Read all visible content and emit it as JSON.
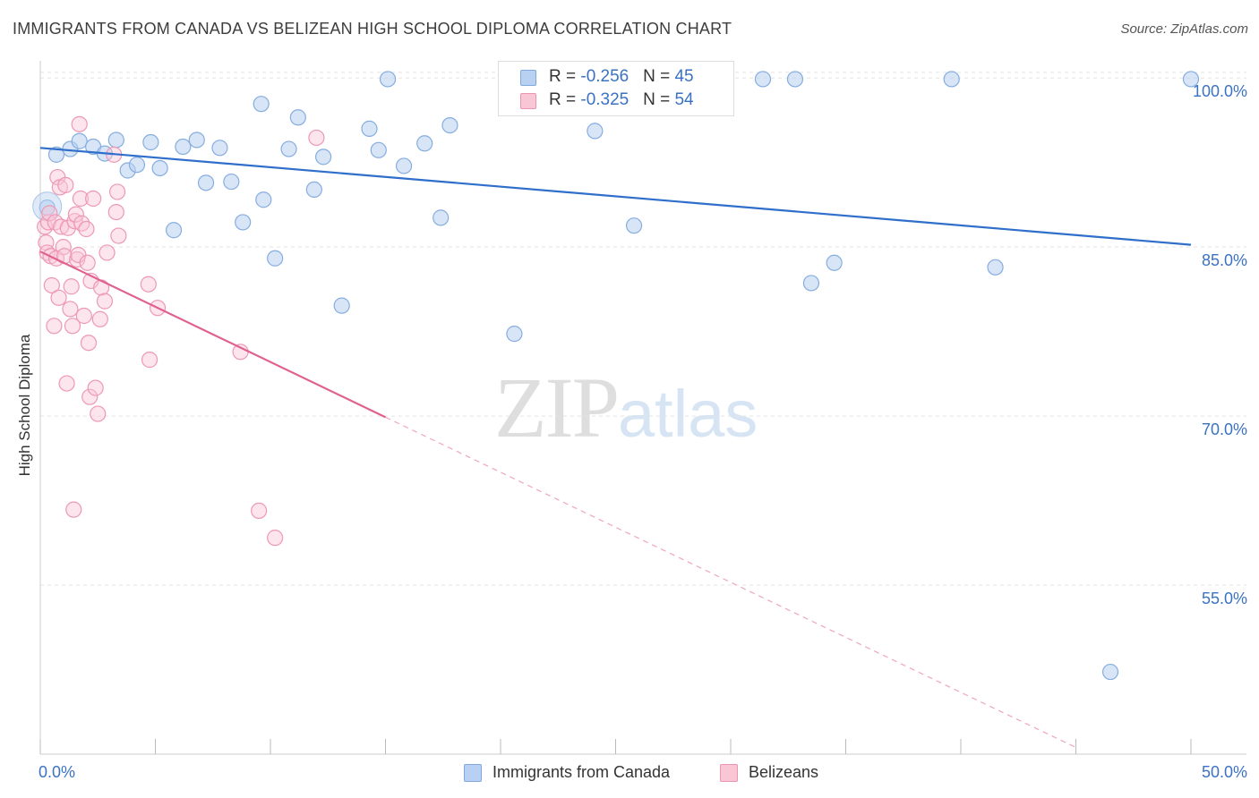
{
  "title": "IMMIGRANTS FROM CANADA VS BELIZEAN HIGH SCHOOL DIPLOMA CORRELATION CHART",
  "source": "Source: ZipAtlas.com",
  "watermark": {
    "zip": "ZIP",
    "atlas": "atlas"
  },
  "legend": {
    "r_label": "R = ",
    "n_label": "N = ",
    "rows": [
      {
        "r": "-0.256",
        "n": "45",
        "fill": "#b8d0f1",
        "stroke": "#7fa8dc"
      },
      {
        "r": "-0.325",
        "n": "54",
        "fill": "#f9c6d6",
        "stroke": "#ee93b0"
      }
    ]
  },
  "bottom_legend": [
    {
      "label": "Immigrants from Canada",
      "fill": "#b8d0f1",
      "stroke": "#7fa8dc"
    },
    {
      "label": "Belizeans",
      "fill": "#f9c6d6",
      "stroke": "#ee93b0"
    }
  ],
  "chart_data": {
    "type": "scatter",
    "title": "IMMIGRANTS FROM CANADA VS BELIZEAN HIGH SCHOOL DIPLOMA CORRELATION CHART",
    "xlabel": "",
    "ylabel": "High School Diploma",
    "xlim": [
      0,
      50
    ],
    "ylim": [
      40,
      102
    ],
    "x_tick_labels": [
      "0.0%",
      "50.0%"
    ],
    "y_ticks": [
      55,
      70,
      85,
      100
    ],
    "y_tick_labels": [
      "55.0%",
      "70.0%",
      "85.0%",
      "100.0%"
    ],
    "grid": true,
    "legend_position": "top-center",
    "colors": {
      "blue_line": "#2f6fcb",
      "pink_line": "#e0608f",
      "tick_label": "#3a72c4"
    },
    "series": [
      {
        "name": "Immigrants from Canada",
        "r": -0.256,
        "n": 45,
        "trend": {
          "x": [
            0,
            50
          ],
          "y": [
            93.8,
            85.2
          ]
        },
        "points": [
          [
            0.3,
            88.5
          ],
          [
            0.7,
            93.2
          ],
          [
            1.3,
            93.7
          ],
          [
            1.7,
            94.4
          ],
          [
            2.3,
            93.9
          ],
          [
            2.8,
            93.3
          ],
          [
            3.3,
            94.5
          ],
          [
            3.8,
            91.8
          ],
          [
            4.2,
            92.3
          ],
          [
            4.8,
            94.3
          ],
          [
            5.2,
            92.0
          ],
          [
            5.8,
            86.5
          ],
          [
            6.2,
            93.9
          ],
          [
            6.8,
            94.5
          ],
          [
            7.2,
            90.7
          ],
          [
            7.8,
            93.8
          ],
          [
            8.3,
            90.8
          ],
          [
            8.8,
            87.2
          ],
          [
            9.6,
            97.7
          ],
          [
            9.7,
            89.2
          ],
          [
            10.2,
            84.0
          ],
          [
            10.8,
            93.7
          ],
          [
            11.2,
            96.5
          ],
          [
            11.9,
            90.1
          ],
          [
            12.3,
            93.0
          ],
          [
            13.1,
            79.8
          ],
          [
            14.3,
            95.5
          ],
          [
            14.7,
            93.6
          ],
          [
            15.1,
            99.9
          ],
          [
            15.8,
            92.2
          ],
          [
            16.7,
            94.2
          ],
          [
            17.4,
            87.6
          ],
          [
            17.8,
            95.8
          ],
          [
            20.6,
            77.3
          ],
          [
            24.1,
            95.3
          ],
          [
            25.8,
            86.9
          ],
          [
            29.6,
            99.9
          ],
          [
            31.4,
            99.9
          ],
          [
            32.8,
            99.9
          ],
          [
            33.5,
            81.8
          ],
          [
            34.5,
            83.6
          ],
          [
            39.6,
            99.9
          ],
          [
            41.5,
            83.2
          ],
          [
            46.5,
            47.3
          ],
          [
            50.0,
            99.9
          ]
        ]
      },
      {
        "name": "Belizeans",
        "r": -0.325,
        "n": 54,
        "trend": {
          "x": [
            0,
            15
          ],
          "y": [
            84.6,
            69.9
          ]
        },
        "trend_extrapolated": {
          "x": [
            15,
            45
          ],
          "y": [
            69.9,
            40.6
          ]
        },
        "points": [
          [
            0.2,
            86.8
          ],
          [
            0.25,
            85.4
          ],
          [
            0.3,
            84.5
          ],
          [
            0.35,
            87.2
          ],
          [
            0.4,
            88.0
          ],
          [
            0.45,
            84.2
          ],
          [
            0.5,
            81.6
          ],
          [
            0.6,
            78.0
          ],
          [
            0.65,
            87.2
          ],
          [
            0.7,
            84.0
          ],
          [
            0.75,
            91.2
          ],
          [
            0.8,
            80.5
          ],
          [
            0.85,
            90.3
          ],
          [
            0.9,
            86.8
          ],
          [
            1.0,
            85.0
          ],
          [
            1.05,
            84.2
          ],
          [
            1.1,
            90.5
          ],
          [
            1.15,
            72.9
          ],
          [
            1.2,
            86.7
          ],
          [
            1.3,
            79.5
          ],
          [
            1.35,
            81.5
          ],
          [
            1.4,
            78.0
          ],
          [
            1.45,
            61.7
          ],
          [
            1.5,
            87.3
          ],
          [
            1.55,
            87.9
          ],
          [
            1.6,
            83.9
          ],
          [
            1.65,
            84.3
          ],
          [
            1.7,
            95.9
          ],
          [
            1.75,
            89.3
          ],
          [
            1.8,
            87.1
          ],
          [
            1.9,
            78.9
          ],
          [
            2.0,
            86.6
          ],
          [
            2.05,
            83.6
          ],
          [
            2.1,
            76.5
          ],
          [
            2.15,
            71.7
          ],
          [
            2.2,
            82.0
          ],
          [
            2.3,
            89.3
          ],
          [
            2.4,
            72.5
          ],
          [
            2.5,
            70.2
          ],
          [
            2.6,
            78.6
          ],
          [
            2.65,
            81.4
          ],
          [
            2.8,
            80.2
          ],
          [
            2.9,
            84.5
          ],
          [
            3.2,
            93.2
          ],
          [
            3.3,
            88.1
          ],
          [
            3.35,
            89.9
          ],
          [
            3.4,
            86.0
          ],
          [
            4.7,
            81.7
          ],
          [
            4.75,
            75.0
          ],
          [
            5.1,
            79.6
          ],
          [
            8.7,
            75.7
          ],
          [
            9.5,
            61.6
          ],
          [
            10.2,
            59.2
          ],
          [
            12.0,
            94.7
          ]
        ]
      }
    ]
  }
}
